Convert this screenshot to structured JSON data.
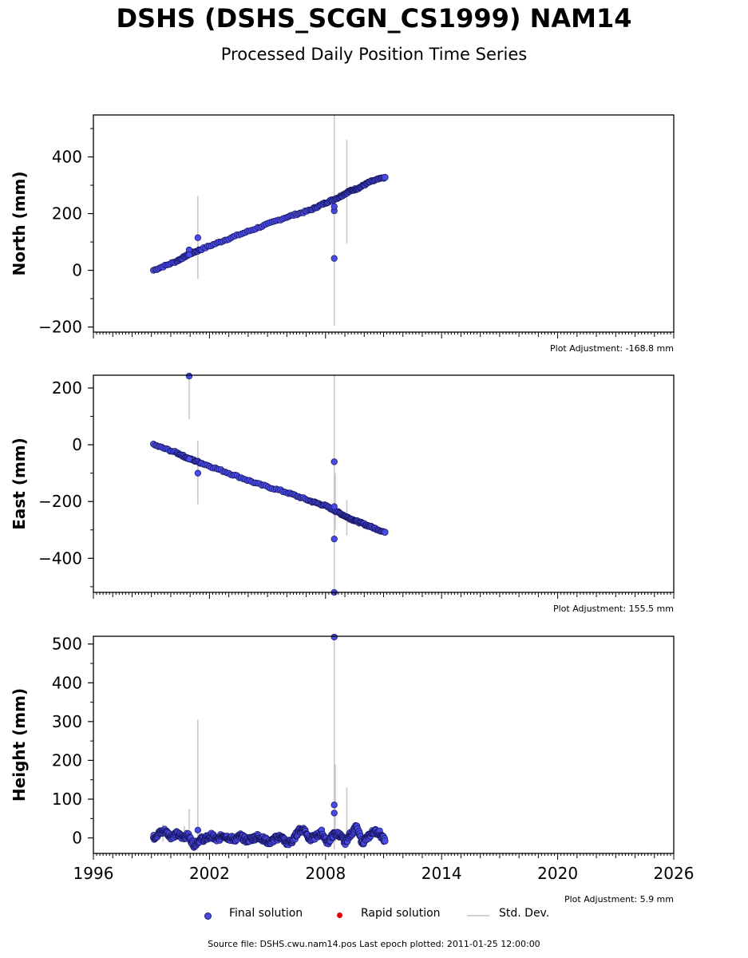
{
  "header": {
    "title": "DSHS (DSHS_SCGN_CS1999) NAM14",
    "subtitle": "Processed Daily Position Time Series"
  },
  "colors": {
    "final_solution": "#4a4ae8",
    "rapid_solution": "#e00000",
    "std_dev": "#c8c8c8",
    "marker_edge": "#15155a"
  },
  "legend": {
    "final": "Final solution",
    "rapid": "Rapid solution",
    "std": "Std. Dev."
  },
  "footer": {
    "source": "Source file: DSHS.cwu.nam14.pos  Last epoch plotted: 2011-01-25 12:00:00"
  },
  "chart_data": [
    {
      "type": "scatter",
      "ylabel": "North (mm)",
      "adjustment": "Plot Adjustment: -168.8 mm",
      "xlim": [
        1996,
        2026
      ],
      "ylim": [
        -218,
        548
      ],
      "yticks": [
        -200,
        0,
        200,
        400
      ],
      "trend": {
        "x": [
          1999.1,
          2011.07
        ],
        "y": [
          0,
          328
        ]
      },
      "segments": [
        {
          "x": [
            1999.1,
            2000.3,
            2000.9,
            2001.6,
            2003.0,
            2004.5,
            2006.0,
            2007.2,
            2008.0,
            2008.7,
            2009.2,
            2009.7,
            2010.3,
            2011.07
          ],
          "y": [
            0,
            32,
            55,
            75,
            112,
            150,
            188,
            212,
            238,
            258,
            278,
            290,
            312,
            328
          ]
        }
      ],
      "outliers": [
        {
          "x": 2000.95,
          "y": 72
        },
        {
          "x": 2000.95,
          "y": 55
        },
        {
          "x": 2001.4,
          "y": 115
        },
        {
          "x": 2008.45,
          "y": 42
        },
        {
          "x": 2008.45,
          "y": 210
        },
        {
          "x": 2008.45,
          "y": 225
        }
      ],
      "errorbars": [
        {
          "x": 2001.4,
          "lo": -30,
          "hi": 262
        },
        {
          "x": 2008.45,
          "lo": -195,
          "hi": 548
        },
        {
          "x": 2009.1,
          "lo": 95,
          "hi": 460
        }
      ]
    },
    {
      "type": "scatter",
      "ylabel": "East (mm)",
      "adjustment": "Plot Adjustment: 155.5 mm",
      "xlim": [
        1996,
        2026
      ],
      "ylim": [
        -520,
        245
      ],
      "yticks": [
        -400,
        -200,
        0,
        200
      ],
      "segments": [
        {
          "x": [
            1999.1,
            2000.3,
            2000.9,
            2001.6,
            2003.0,
            2004.5,
            2006.0,
            2007.2,
            2008.0,
            2008.7,
            2009.2,
            2009.7,
            2010.3,
            2011.07
          ],
          "y": [
            0,
            -28,
            -48,
            -65,
            -100,
            -138,
            -168,
            -198,
            -215,
            -240,
            -258,
            -272,
            -288,
            -308
          ]
        }
      ],
      "outliers": [
        {
          "x": 2000.95,
          "y": 242
        },
        {
          "x": 2000.95,
          "y": -50
        },
        {
          "x": 2001.4,
          "y": -100
        },
        {
          "x": 2008.45,
          "y": -60
        },
        {
          "x": 2008.45,
          "y": -218
        },
        {
          "x": 2008.45,
          "y": -332
        },
        {
          "x": 2008.45,
          "y": -520
        }
      ],
      "errorbars": [
        {
          "x": 2000.95,
          "lo": 90,
          "hi": 245
        },
        {
          "x": 2001.4,
          "lo": -210,
          "hi": 15
        },
        {
          "x": 2008.45,
          "lo": -520,
          "hi": 245
        },
        {
          "x": 2008.5,
          "lo": -300,
          "hi": -100
        },
        {
          "x": 2009.1,
          "lo": -320,
          "hi": -195
        }
      ]
    },
    {
      "type": "scatter",
      "ylabel": "Height (mm)",
      "adjustment": "Plot Adjustment: 5.9 mm",
      "xlabel_ticks": [
        "1996",
        "2002",
        "2008",
        "2014",
        "2020",
        "2026"
      ],
      "xlim": [
        1996,
        2026
      ],
      "ylim": [
        -40,
        520
      ],
      "yticks": [
        0,
        100,
        200,
        300,
        400,
        500
      ],
      "segments": [
        {
          "x": [
            1999.1,
            1999.4,
            1999.7,
            2000.0,
            2000.3,
            2000.6,
            2000.9,
            2001.2,
            2001.5,
            2001.8,
            2002.1,
            2002.4,
            2002.7,
            2003.0,
            2003.3,
            2003.6,
            2003.9,
            2004.2,
            2004.5,
            2004.8,
            2005.1,
            2005.4,
            2005.7,
            2006.0,
            2006.3,
            2006.6,
            2006.9,
            2007.2,
            2007.5,
            2007.8,
            2008.1,
            2008.4,
            2008.7,
            2009.0,
            2009.3,
            2009.6,
            2009.9,
            2010.2,
            2010.5,
            2010.8,
            2011.07
          ],
          "y": [
            0,
            12,
            18,
            4,
            10,
            2,
            6,
            -18,
            -4,
            -2,
            6,
            -6,
            8,
            0,
            -4,
            5,
            -6,
            -2,
            4,
            -3,
            -12,
            -2,
            4,
            -14,
            -8,
            18,
            22,
            -4,
            4,
            14,
            -12,
            8,
            10,
            -12,
            10,
            28,
            -12,
            2,
            18,
            12,
            -8
          ]
        }
      ],
      "outliers": [
        {
          "x": 2001.4,
          "y": 20
        },
        {
          "x": 2008.45,
          "y": 518
        },
        {
          "x": 2008.45,
          "y": 85
        },
        {
          "x": 2008.45,
          "y": 64
        }
      ],
      "errorbars": [
        {
          "x": 2000.95,
          "lo": -20,
          "hi": 75
        },
        {
          "x": 2001.4,
          "lo": -12,
          "hi": 305
        },
        {
          "x": 2008.45,
          "lo": -30,
          "hi": 520
        },
        {
          "x": 2008.5,
          "lo": -10,
          "hi": 190
        },
        {
          "x": 2009.1,
          "lo": -25,
          "hi": 130
        },
        {
          "x": 1999.6,
          "lo": -10,
          "hi": 35
        },
        {
          "x": 2000.7,
          "lo": -10,
          "hi": 30
        }
      ]
    }
  ]
}
